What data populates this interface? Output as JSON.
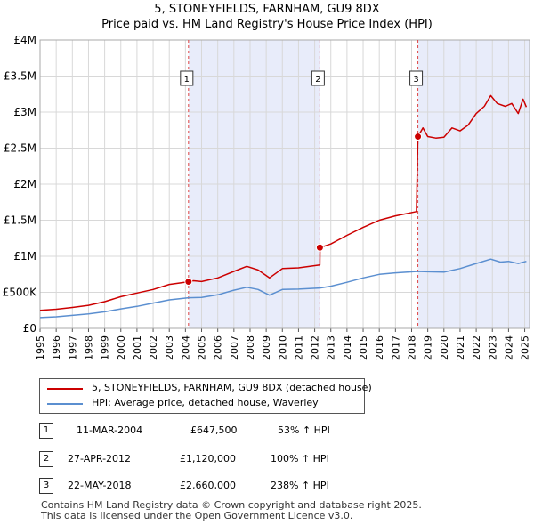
{
  "header": {
    "title": "5, STONEYFIELDS, FARNHAM, GU9 8DX",
    "subtitle": "Price paid vs. HM Land Registry's House Price Index (HPI)"
  },
  "chart_data": {
    "type": "line",
    "title": "5, STONEYFIELDS, FARNHAM, GU9 8DX",
    "subtitle": "Price paid vs. HM Land Registry's House Price Index (HPI)",
    "xlabel": "",
    "ylabel": "",
    "xlim": [
      1995,
      2025.3
    ],
    "ylim": [
      0,
      4000000
    ],
    "grid": true,
    "y_ticks": [
      {
        "value": 0,
        "label": "£0"
      },
      {
        "value": 500000,
        "label": "£500K"
      },
      {
        "value": 1000000,
        "label": "£1M"
      },
      {
        "value": 1500000,
        "label": "£1.5M"
      },
      {
        "value": 2000000,
        "label": "£2M"
      },
      {
        "value": 2500000,
        "label": "£2.5M"
      },
      {
        "value": 3000000,
        "label": "£3M"
      },
      {
        "value": 3500000,
        "label": "£3.5M"
      },
      {
        "value": 4000000,
        "label": "£4M"
      }
    ],
    "x_ticks": [
      "1995",
      "1996",
      "1997",
      "1998",
      "1999",
      "2000",
      "2001",
      "2002",
      "2003",
      "2004",
      "2005",
      "2006",
      "2007",
      "2008",
      "2009",
      "2010",
      "2011",
      "2012",
      "2013",
      "2014",
      "2015",
      "2016",
      "2017",
      "2018",
      "2019",
      "2020",
      "2021",
      "2022",
      "2023",
      "2024",
      "2025"
    ],
    "series": [
      {
        "name": "5, STONEYFIELDS, FARNHAM, GU9 8DX (detached house)",
        "color": "#cc0000",
        "points": [
          [
            1995.0,
            250000
          ],
          [
            1996.0,
            265000
          ],
          [
            1997.0,
            290000
          ],
          [
            1998.0,
            320000
          ],
          [
            1999.0,
            370000
          ],
          [
            2000.0,
            440000
          ],
          [
            2001.0,
            490000
          ],
          [
            2002.0,
            540000
          ],
          [
            2003.0,
            610000
          ],
          [
            2004.2,
            647500
          ],
          [
            2004.5,
            660000
          ],
          [
            2005.0,
            650000
          ],
          [
            2006.0,
            700000
          ],
          [
            2007.0,
            790000
          ],
          [
            2007.8,
            860000
          ],
          [
            2008.5,
            810000
          ],
          [
            2009.2,
            700000
          ],
          [
            2010.0,
            830000
          ],
          [
            2011.0,
            840000
          ],
          [
            2012.32,
            880000
          ],
          [
            2012.33,
            1120000
          ],
          [
            2013.0,
            1170000
          ],
          [
            2014.0,
            1290000
          ],
          [
            2015.0,
            1400000
          ],
          [
            2016.0,
            1500000
          ],
          [
            2017.0,
            1560000
          ],
          [
            2018.3,
            1620000
          ],
          [
            2018.39,
            2660000
          ],
          [
            2018.7,
            2780000
          ],
          [
            2019.0,
            2660000
          ],
          [
            2019.5,
            2640000
          ],
          [
            2020.0,
            2650000
          ],
          [
            2020.5,
            2780000
          ],
          [
            2021.0,
            2740000
          ],
          [
            2021.5,
            2820000
          ],
          [
            2022.0,
            2980000
          ],
          [
            2022.5,
            3080000
          ],
          [
            2022.9,
            3230000
          ],
          [
            2023.3,
            3120000
          ],
          [
            2023.8,
            3080000
          ],
          [
            2024.2,
            3120000
          ],
          [
            2024.6,
            2980000
          ],
          [
            2024.9,
            3180000
          ],
          [
            2025.1,
            3070000
          ]
        ]
      },
      {
        "name": "HPI: Average price, detached house, Waverley",
        "color": "#5b8fd0",
        "points": [
          [
            1995.0,
            150000
          ],
          [
            1996.0,
            160000
          ],
          [
            1997.0,
            180000
          ],
          [
            1998.0,
            200000
          ],
          [
            1999.0,
            230000
          ],
          [
            2000.0,
            270000
          ],
          [
            2001.0,
            305000
          ],
          [
            2002.0,
            350000
          ],
          [
            2003.0,
            395000
          ],
          [
            2004.2,
            425000
          ],
          [
            2005.0,
            430000
          ],
          [
            2006.0,
            465000
          ],
          [
            2007.0,
            530000
          ],
          [
            2007.8,
            570000
          ],
          [
            2008.5,
            540000
          ],
          [
            2009.2,
            460000
          ],
          [
            2010.0,
            540000
          ],
          [
            2011.0,
            545000
          ],
          [
            2012.33,
            560000
          ],
          [
            2013.0,
            585000
          ],
          [
            2014.0,
            640000
          ],
          [
            2015.0,
            700000
          ],
          [
            2016.0,
            750000
          ],
          [
            2017.0,
            770000
          ],
          [
            2018.39,
            790000
          ],
          [
            2019.0,
            785000
          ],
          [
            2020.0,
            780000
          ],
          [
            2021.0,
            830000
          ],
          [
            2022.0,
            900000
          ],
          [
            2022.9,
            960000
          ],
          [
            2023.5,
            920000
          ],
          [
            2024.0,
            930000
          ],
          [
            2024.6,
            900000
          ],
          [
            2025.1,
            930000
          ]
        ]
      }
    ],
    "sales": [
      {
        "num": "1",
        "x": 2004.19,
        "price": 647500
      },
      {
        "num": "2",
        "x": 2012.32,
        "price": 1120000
      },
      {
        "num": "3",
        "x": 2018.39,
        "price": 2660000
      }
    ]
  },
  "legend": {
    "property_label": "5, STONEYFIELDS, FARNHAM, GU9 8DX (detached house)",
    "hpi_label": "HPI: Average price, detached house, Waverley",
    "property_color": "#cc0000",
    "hpi_color": "#5b8fd0"
  },
  "transactions": [
    {
      "num": "1",
      "date": "11-MAR-2004",
      "price": "£647,500",
      "hpi": "53% ↑ HPI"
    },
    {
      "num": "2",
      "date": "27-APR-2012",
      "price": "£1,120,000",
      "hpi": "100% ↑ HPI"
    },
    {
      "num": "3",
      "date": "22-MAY-2018",
      "price": "£2,660,000",
      "hpi": "238% ↑ HPI"
    }
  ],
  "footer": {
    "line1": "Contains HM Land Registry data © Crown copyright and database right 2025.",
    "line2": "This data is licensed under the Open Government Licence v3.0."
  }
}
